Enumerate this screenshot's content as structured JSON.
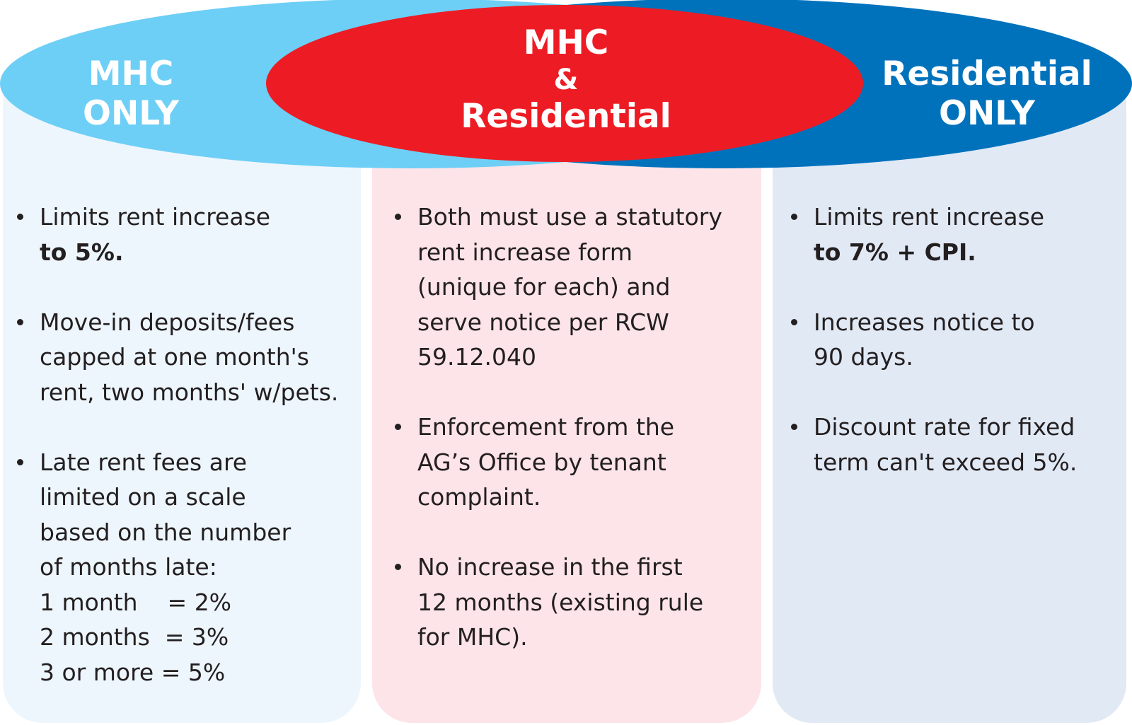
{
  "colors": {
    "mhc_only": "#6dcff6",
    "shared": "#ed1c24",
    "residential_only": "#0072bc",
    "panel_left": "#eef6fd",
    "panel_middle": "#fce4e8",
    "panel_right": "#e1e9f5",
    "text": "#231f20"
  },
  "headers": {
    "mhc_only": [
      "MHC",
      "ONLY"
    ],
    "shared": [
      "MHC",
      "&",
      "Residential"
    ],
    "residential_only": [
      "Residential",
      "ONLY"
    ]
  },
  "mhc_only_items": [
    {
      "text": "Limits rent increase",
      "bold": "to 5%."
    },
    {
      "lines": [
        "Move-in deposits/fees",
        "capped at one month's",
        "rent, two months' w/pets."
      ]
    },
    {
      "lines": [
        "Late rent fees are",
        "limited on a scale",
        "based on the number",
        "of months late:",
        "1 month    = 2%",
        "2 months  = 3%",
        "3 or more = 5%"
      ]
    }
  ],
  "shared_items": [
    {
      "lines": [
        "Both must use a statutory",
        "rent increase form",
        "(unique for each) and",
        "serve notice per RCW",
        "59.12.040"
      ]
    },
    {
      "lines": [
        "Enforcement from the",
        "AG’s Office by tenant",
        "complaint."
      ]
    },
    {
      "lines": [
        "No increase in the first",
        "12 months (existing rule",
        "for MHC)."
      ]
    }
  ],
  "residential_only_items": [
    {
      "text": "Limits rent increase",
      "bold": "to 7% + CPI."
    },
    {
      "lines": [
        "Increases notice to",
        "90 days."
      ]
    },
    {
      "lines": [
        "Discount rate for fixed",
        "term can't exceed 5%."
      ]
    }
  ]
}
